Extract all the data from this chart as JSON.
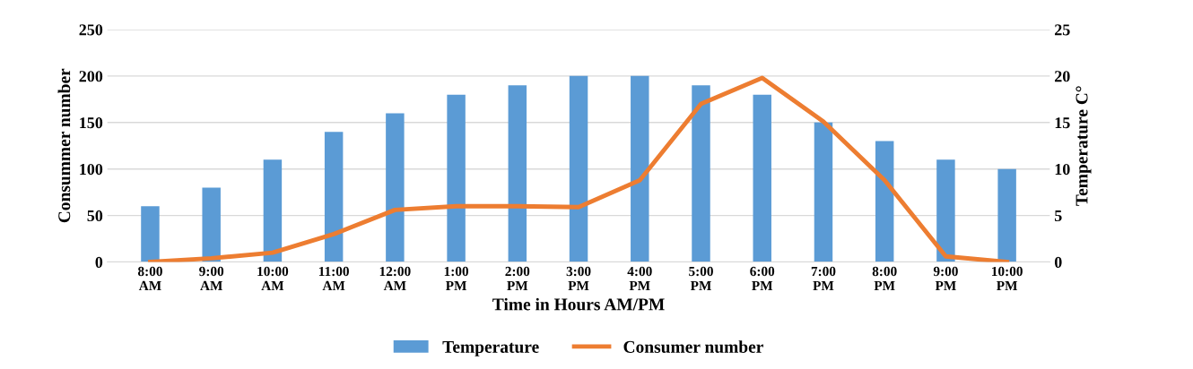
{
  "chart_data": {
    "type": "bar",
    "xlabel": "Time in Hours AM/PM",
    "ylabel": "Consummer number",
    "y2label": "Temperature C°",
    "categories": [
      "8:00 AM",
      "9:00 AM",
      "10:00 AM",
      "11:00 AM",
      "12:00 AM",
      "1:00 PM",
      "2:00 PM",
      "3:00 PM",
      "4:00 PM",
      "5:00 PM",
      "6:00 PM",
      "7:00 PM",
      "8:00 PM",
      "9:00 PM",
      "10:00 PM"
    ],
    "series": [
      {
        "name": "Temperature",
        "axis": "y2",
        "color": "#5b9bd5",
        "values": [
          6,
          8,
          11,
          14,
          16,
          18,
          19,
          20,
          20,
          19,
          18,
          15,
          13,
          11,
          10
        ]
      },
      {
        "name": "Consumer number",
        "type": "line",
        "color": "#ed7d31",
        "values": [
          0,
          4,
          10,
          30,
          56,
          60,
          60,
          59,
          88,
          170,
          198,
          151,
          88,
          6,
          0
        ]
      }
    ],
    "ylim": [
      0,
      250
    ],
    "yticks": [
      0,
      50,
      100,
      150,
      200,
      250
    ],
    "y2lim": [
      0,
      25
    ],
    "y2ticks": [
      0,
      5,
      10,
      15,
      20,
      25
    ],
    "grid": "y",
    "legend": "bottom",
    "marker": "none",
    "line_style": "solid"
  }
}
